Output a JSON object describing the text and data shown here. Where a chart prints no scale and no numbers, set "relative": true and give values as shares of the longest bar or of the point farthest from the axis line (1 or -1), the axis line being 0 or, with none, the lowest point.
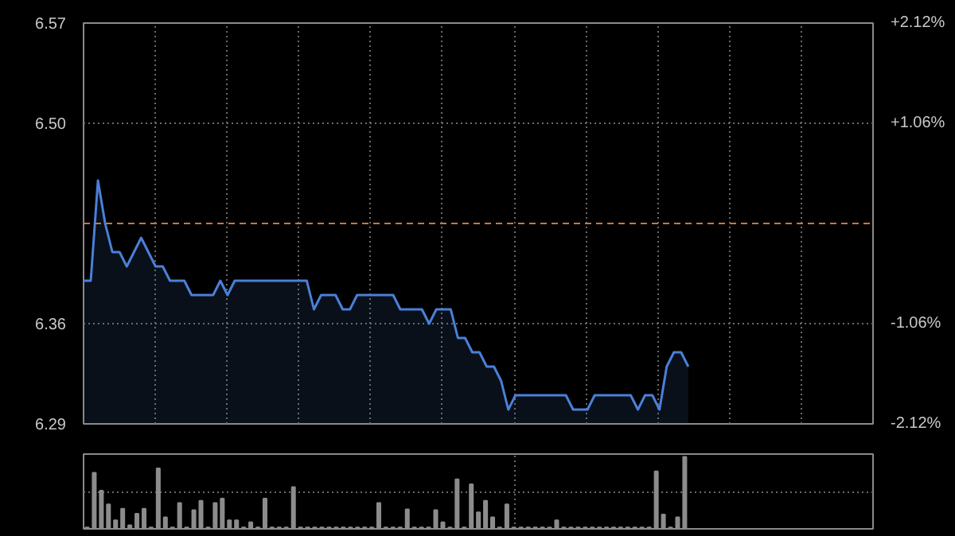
{
  "chart_data": [
    {
      "type": "area",
      "categories": [
        null,
        null,
        null,
        null,
        null,
        null,
        null,
        null,
        null,
        null,
        null,
        null,
        null,
        null,
        null,
        null,
        null,
        null,
        null,
        null,
        null,
        null,
        null,
        null,
        null,
        null,
        null,
        null,
        null,
        null,
        null,
        null,
        null,
        null,
        null,
        null,
        null,
        null,
        null,
        null,
        null,
        null,
        null,
        null,
        null,
        null,
        null,
        null,
        null,
        null,
        null,
        null,
        null,
        null,
        null,
        null,
        null,
        null,
        null,
        null,
        null,
        null,
        null,
        null,
        null,
        null,
        null,
        null,
        null,
        null,
        null,
        null,
        null,
        null,
        null,
        null,
        null,
        null,
        null,
        null,
        null,
        null,
        null,
        null,
        null
      ],
      "series": [
        {
          "color": "#4a80d8",
          "values": [
            6.39,
            6.39,
            6.46,
            6.43,
            6.41,
            6.41,
            6.4,
            6.41,
            6.42,
            6.41,
            6.4,
            6.4,
            6.39,
            6.39,
            6.39,
            6.38,
            6.38,
            6.38,
            6.38,
            6.39,
            6.38,
            6.39,
            6.39,
            6.39,
            6.39,
            6.39,
            6.39,
            6.39,
            6.39,
            6.39,
            6.39,
            6.39,
            6.37,
            6.38,
            6.38,
            6.38,
            6.37,
            6.37,
            6.38,
            6.38,
            6.38,
            6.38,
            6.38,
            6.38,
            6.37,
            6.37,
            6.37,
            6.37,
            6.36,
            6.37,
            6.37,
            6.37,
            6.35,
            6.35,
            6.34,
            6.34,
            6.33,
            6.33,
            6.32,
            6.3,
            6.31,
            6.31,
            6.31,
            6.31,
            6.31,
            6.31,
            6.31,
            6.31,
            6.3,
            6.3,
            6.3,
            6.31,
            6.31,
            6.31,
            6.31,
            6.31,
            6.31,
            6.3,
            6.31,
            6.31,
            6.3,
            6.33,
            6.34,
            6.34,
            6.33
          ]
        }
      ],
      "ylim": [
        6.29,
        6.57
      ],
      "yticks": [
        6.29,
        6.36,
        {
          "value": 6.5,
          "label": "6.50"
        },
        6.57
      ],
      "y2lim": [
        -2.12,
        2.12
      ],
      "y2ticks": [
        {
          "value": -2.12,
          "label": "-2.12%"
        },
        {
          "value": -1.06,
          "label": "-1.06%"
        },
        {
          "value": 1.06,
          "label": "+1.06%"
        },
        {
          "value": 2.12,
          "label": "+2.12%"
        }
      ],
      "ref_lines": [
        {
          "axis": "y",
          "value": 6.43,
          "color": "#c8783c",
          "line_style": "dashed"
        }
      ],
      "grid": true,
      "tick_labels": "y"
    },
    {
      "type": "bar",
      "relative": true,
      "categories": [
        null,
        null,
        null,
        null,
        null,
        null,
        null,
        null,
        null,
        null,
        null,
        null,
        null,
        null,
        null,
        null,
        null,
        null,
        null,
        null,
        null,
        null,
        null,
        null,
        null,
        null,
        null,
        null,
        null,
        null,
        null,
        null,
        null,
        null,
        null,
        null,
        null,
        null,
        null,
        null,
        null,
        null,
        null,
        null,
        null,
        null,
        null,
        null,
        null,
        null,
        null,
        null,
        null,
        null,
        null,
        null,
        null,
        null,
        null,
        null,
        null,
        null,
        null,
        null,
        null,
        null,
        null,
        null,
        null,
        null,
        null,
        null,
        null,
        null,
        null,
        null,
        null,
        null,
        null,
        null,
        null,
        null,
        null,
        null,
        null
      ],
      "color": "#8c8c8c",
      "values": [
        0.02,
        0.78,
        0.53,
        0.34,
        0.12,
        0.28,
        0.05,
        0.21,
        0.28,
        0.02,
        0.84,
        0.16,
        0.02,
        0.36,
        0.02,
        0.26,
        0.39,
        0.02,
        0.36,
        0.42,
        0.12,
        0.12,
        0.02,
        0.09,
        0.02,
        0.42,
        0.02,
        0.02,
        0.02,
        0.58,
        0.02,
        0.02,
        0.02,
        0.02,
        0.02,
        0.02,
        0.02,
        0.02,
        0.02,
        0.02,
        0.02,
        0.36,
        0.02,
        0.02,
        0.02,
        0.27,
        0.02,
        0.02,
        0.02,
        0.26,
        0.09,
        0.02,
        0.69,
        0.02,
        0.62,
        0.23,
        0.39,
        0.16,
        0.02,
        0.34,
        0.02,
        0.02,
        0.02,
        0.02,
        0.02,
        0.02,
        0.12,
        0.02,
        0.02,
        0.02,
        0.02,
        0.02,
        0.02,
        0.02,
        0.02,
        0.02,
        0.02,
        0.02,
        0.02,
        0.02,
        0.8,
        0.2,
        0.02,
        0.16,
        1
      ],
      "grid": true,
      "tick_labels": false
    }
  ]
}
